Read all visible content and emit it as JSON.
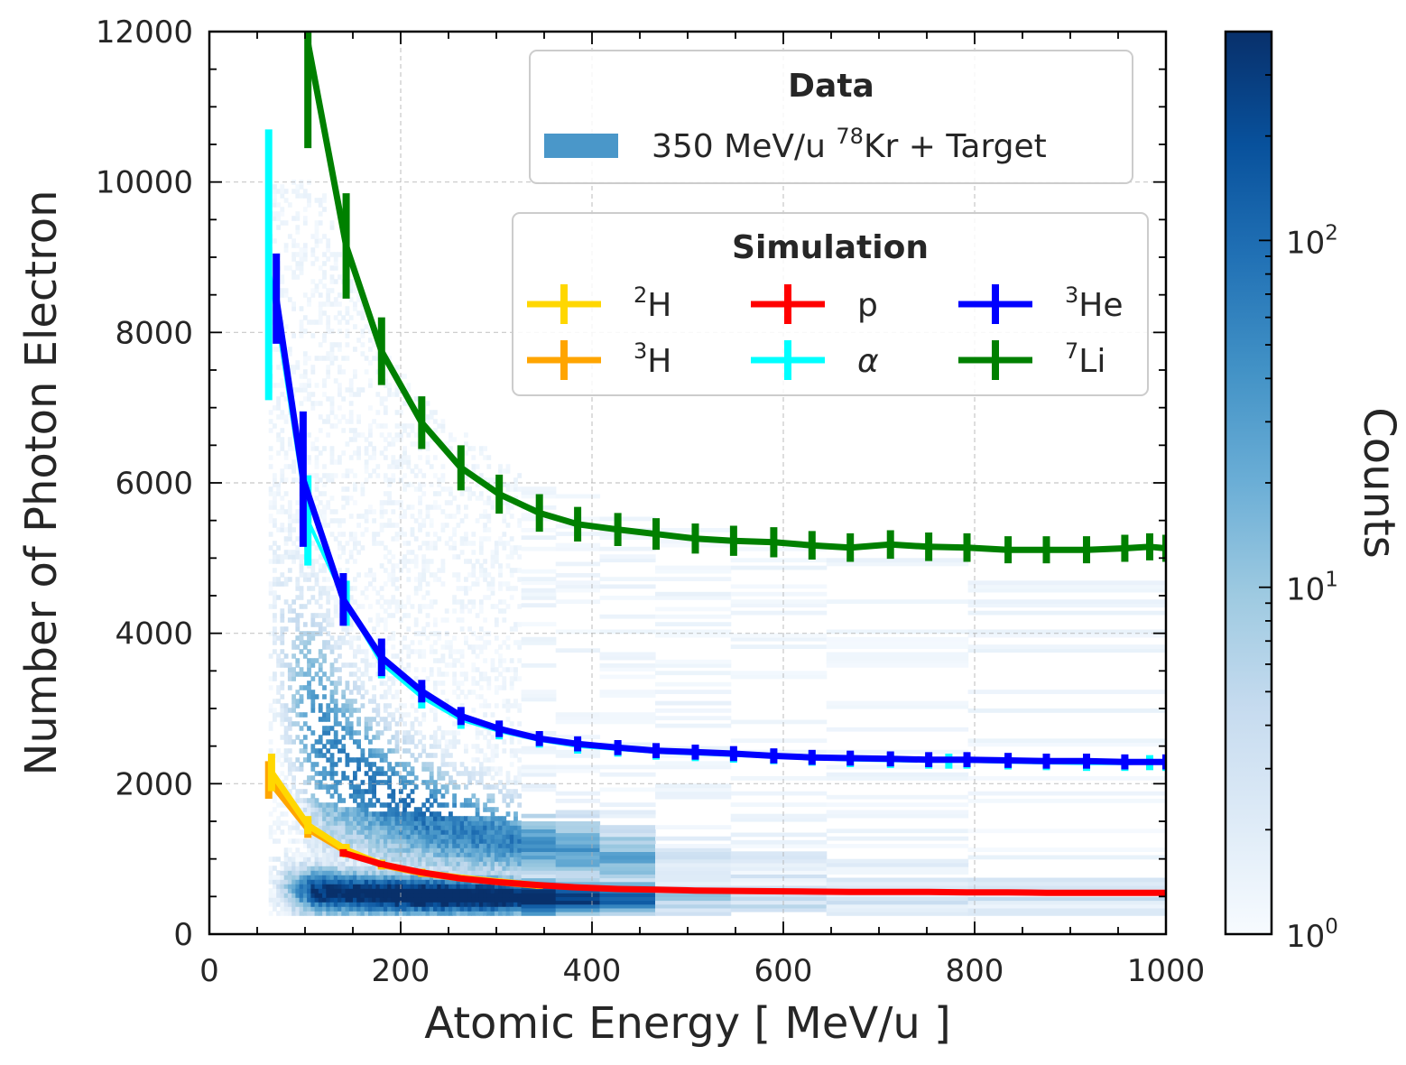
{
  "chart_data": {
    "type": "line",
    "title": "",
    "xlabel": "Atomic Energy [ MeV/u ]",
    "ylabel": "Number of Photon Electron",
    "xlim": [
      0,
      1000
    ],
    "ylim": [
      0,
      12000
    ],
    "grid": true,
    "x_ticks": [
      "0",
      "200",
      "400",
      "600",
      "800",
      "1000"
    ],
    "y_ticks": [
      "0",
      "2000",
      "4000",
      "6000",
      "8000",
      "10000",
      "12000"
    ],
    "colorbar": {
      "label": "Counts",
      "scale": "log",
      "range": [
        1,
        400
      ],
      "colormap": "Blues",
      "tick_values": [
        1,
        10,
        100
      ],
      "tick_labels": [
        {
          "base": "10",
          "exp": "0"
        },
        {
          "base": "10",
          "exp": "1"
        },
        {
          "base": "10",
          "exp": "2"
        }
      ]
    },
    "data_legend": {
      "title": "Data",
      "entries": [
        {
          "label": "350 MeV/u ",
          "sup": "78",
          "label_end": "Kr + Target",
          "color": "#4a97c9"
        }
      ]
    },
    "sim_legend": {
      "title": "Simulation",
      "entries": [
        {
          "sup": "2",
          "label": "H",
          "color": "#ffd700"
        },
        {
          "sup": "",
          "label": "p",
          "color": "#ff0000"
        },
        {
          "sup": "3",
          "label": "He",
          "color": "#0000ff"
        },
        {
          "sup": "3",
          "label": "H",
          "color": "#ffa500"
        },
        {
          "sup": "",
          "label": "α",
          "italic": true,
          "color": "#00ffff"
        },
        {
          "sup": "7",
          "label": "Li",
          "color": "#008000"
        }
      ]
    },
    "histogram": {
      "description_values": "2D histogram of data counts; densest band near y ~ 500-1500 at x ~ 150-350 MeV/u, diffuse band above",
      "peak_x": 240,
      "peak_y": 620
    },
    "series": [
      {
        "name": "7Li",
        "color": "#008000",
        "x": [
          103,
          143,
          180,
          222,
          263,
          303,
          345,
          385,
          427,
          467,
          508,
          548,
          590,
          630,
          670,
          712,
          752,
          792,
          835,
          875,
          917,
          957,
          983,
          1000
        ],
        "y": [
          11850,
          9150,
          7750,
          6800,
          6200,
          5850,
          5600,
          5450,
          5380,
          5320,
          5260,
          5230,
          5210,
          5170,
          5140,
          5180,
          5150,
          5140,
          5110,
          5110,
          5110,
          5130,
          5150,
          5130
        ],
        "err": [
          1400,
          700,
          450,
          350,
          300,
          260,
          250,
          230,
          220,
          210,
          200,
          200,
          200,
          190,
          190,
          190,
          190,
          190,
          180,
          180,
          180,
          180,
          180,
          180
        ]
      },
      {
        "name": "alpha",
        "color": "#00ffff",
        "x": [
          62,
          103,
          143,
          180,
          222,
          263,
          303,
          345,
          385,
          427,
          467,
          508,
          548,
          590,
          630,
          670,
          712,
          752,
          773,
          792,
          835,
          875,
          917,
          957,
          983,
          1000
        ],
        "y": [
          8900,
          5500,
          4400,
          3600,
          3150,
          2850,
          2700,
          2580,
          2500,
          2460,
          2420,
          2400,
          2380,
          2360,
          2340,
          2320,
          2310,
          2300,
          2300,
          2300,
          2290,
          2280,
          2270,
          2270,
          2280,
          2270
        ],
        "err": [
          1800,
          600,
          300,
          200,
          150,
          120,
          110,
          100,
          100,
          100,
          100,
          100,
          100,
          100,
          100,
          100,
          100,
          100,
          100,
          100,
          100,
          100,
          100,
          100,
          100,
          100
        ]
      },
      {
        "name": "3He",
        "color": "#0000ff",
        "x": [
          70,
          98,
          140,
          180,
          222,
          263,
          303,
          345,
          385,
          427,
          467,
          508,
          548,
          590,
          630,
          670,
          712,
          752,
          792,
          835,
          875,
          917,
          957,
          1000
        ],
        "y": [
          8450,
          6050,
          4450,
          3680,
          3230,
          2900,
          2730,
          2600,
          2530,
          2480,
          2440,
          2420,
          2400,
          2370,
          2350,
          2340,
          2330,
          2320,
          2320,
          2310,
          2300,
          2300,
          2290,
          2290
        ],
        "err": [
          600,
          900,
          350,
          250,
          150,
          120,
          110,
          100,
          100,
          100,
          100,
          100,
          100,
          100,
          100,
          100,
          100,
          100,
          100,
          100,
          100,
          100,
          100,
          100
        ]
      },
      {
        "name": "3H",
        "color": "#ffa500",
        "x": [
          62,
          103,
          143,
          180,
          222,
          263,
          303,
          345
        ],
        "y": [
          2050,
          1400,
          1100,
          920,
          810,
          740,
          690,
          640
        ],
        "err": [
          250,
          120,
          80,
          60,
          50,
          40,
          40,
          40
        ]
      },
      {
        "name": "2H",
        "color": "#ffd700",
        "x": [
          65,
          103,
          143,
          180,
          222,
          263,
          303,
          345
        ],
        "y": [
          2150,
          1450,
          1120,
          930,
          820,
          750,
          700,
          650
        ],
        "err": [
          250,
          120,
          80,
          60,
          50,
          40,
          40,
          40
        ]
      },
      {
        "name": "p",
        "color": "#ff0000",
        "x": [
          140,
          180,
          222,
          263,
          303,
          345,
          385,
          427,
          467,
          508,
          548,
          590,
          630,
          670,
          712,
          752,
          792,
          835,
          875,
          917,
          957,
          1000
        ],
        "y": [
          1080,
          930,
          820,
          740,
          690,
          650,
          620,
          600,
          590,
          580,
          575,
          570,
          565,
          560,
          560,
          560,
          555,
          555,
          550,
          550,
          550,
          550
        ],
        "err": [
          50,
          40,
          35,
          30,
          30,
          30,
          30,
          30,
          30,
          30,
          30,
          30,
          30,
          30,
          30,
          30,
          30,
          30,
          30,
          30,
          30,
          30
        ]
      }
    ]
  }
}
